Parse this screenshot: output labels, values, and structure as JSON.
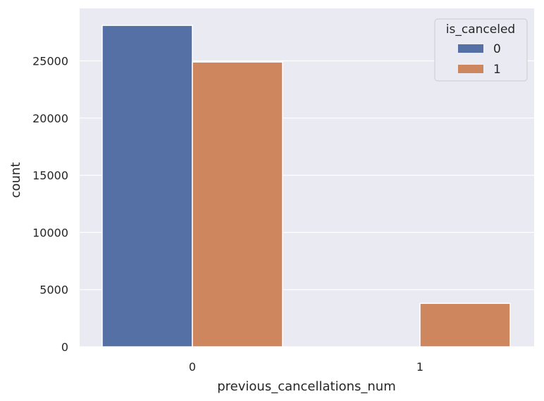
{
  "chart_data": {
    "type": "bar",
    "categories": [
      "0",
      "1"
    ],
    "series": [
      {
        "name": "0",
        "values": [
          28100,
          0
        ]
      },
      {
        "name": "1",
        "values": [
          24900,
          3800
        ]
      }
    ],
    "xlabel": "previous_cancellations_num",
    "ylabel": "count",
    "ylim": [
      0,
      29500
    ],
    "yticks": [
      0,
      5000,
      10000,
      15000,
      20000,
      25000
    ],
    "ytick_labels": [
      "0",
      "5000",
      "10000",
      "15000",
      "20000",
      "25000"
    ],
    "legend": {
      "title": "is_canceled",
      "entries": [
        "0",
        "1"
      ],
      "position": "top-right"
    },
    "grid": true,
    "colors": {
      "series_0": "#5470a4",
      "series_1": "#cd865e",
      "plot_bg": "#eaeaf2",
      "grid": "#ffffff"
    }
  }
}
